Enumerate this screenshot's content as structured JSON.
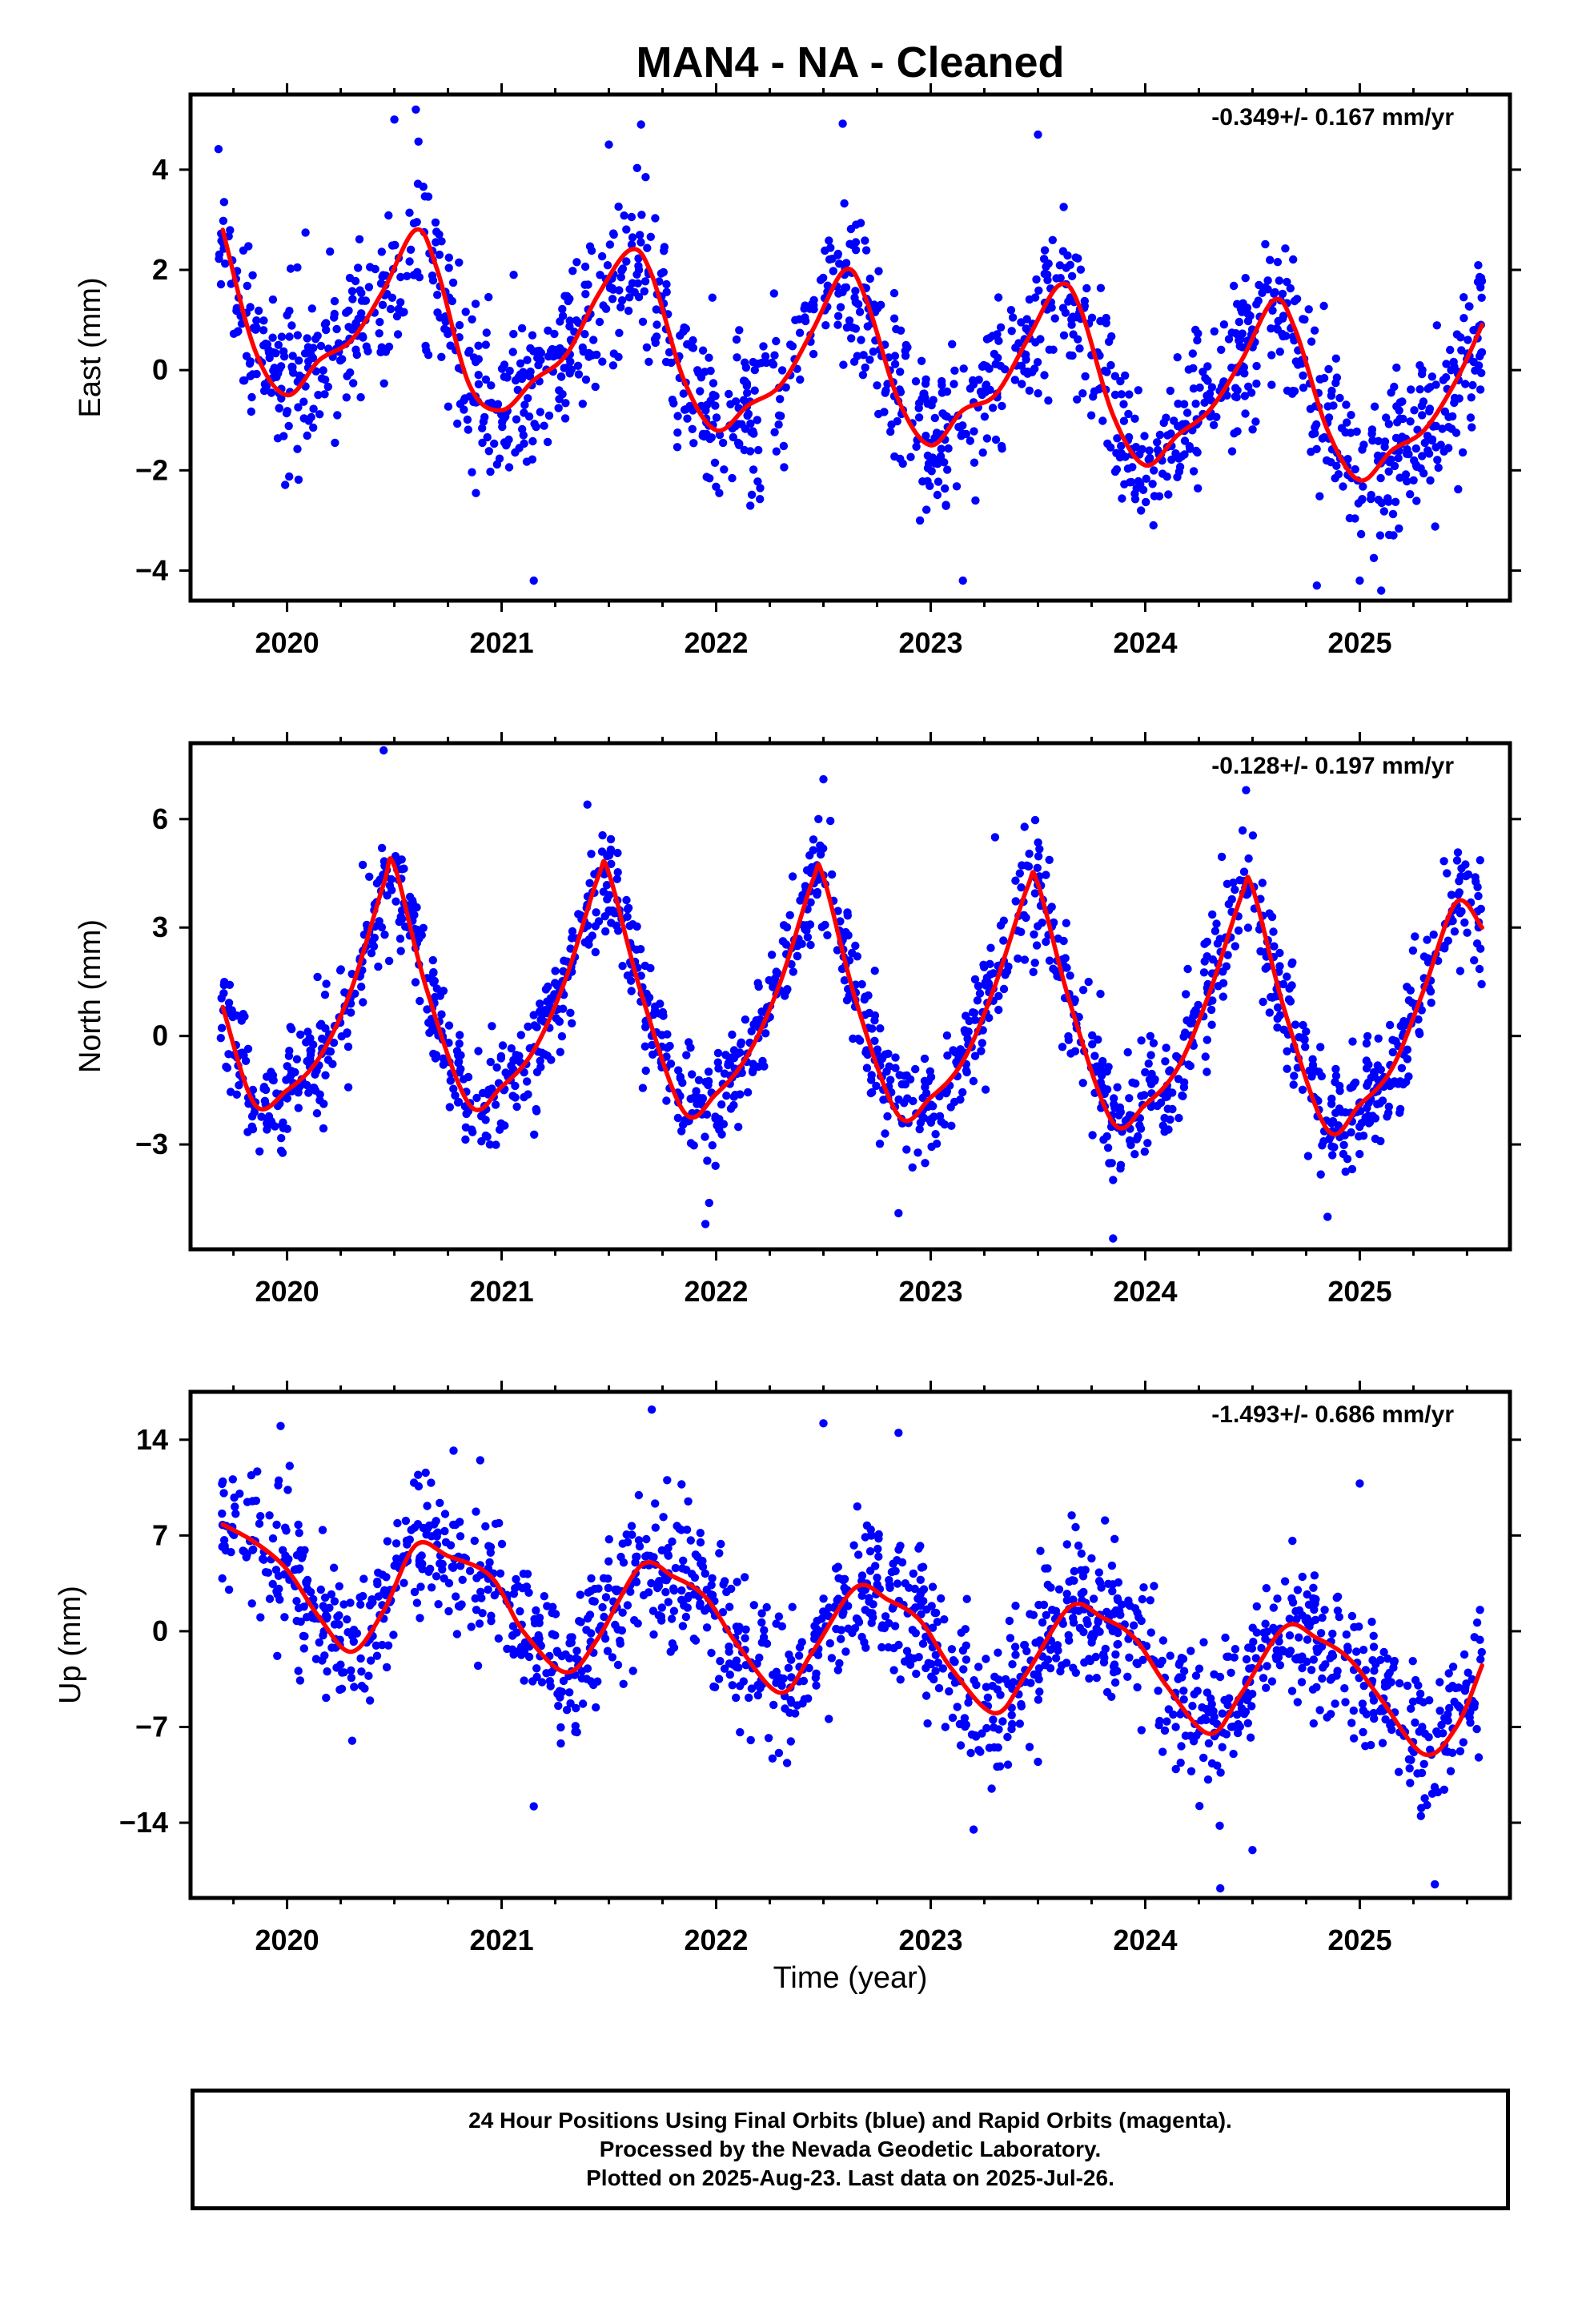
{
  "figure": {
    "title": "MAN4  - NA - Cleaned"
  },
  "colors": {
    "points": "#0000ff",
    "model": "#ff0000",
    "frame": "#000000",
    "background": "#ffffff"
  },
  "chart_data": [
    {
      "type": "scatter",
      "ylabel": "East (mm)",
      "xlabel": "",
      "rate_label": "-0.349+/- 0.167 mm/yr",
      "xlim": [
        2019.55,
        2025.7
      ],
      "ylim": [
        -4.6,
        5.5
      ],
      "xticks": [
        2020,
        2021,
        2022,
        2023,
        2024,
        2025
      ],
      "yticks": [
        -4,
        -2,
        0,
        2,
        4
      ],
      "model": {
        "x": [
          2019.7,
          2019.85,
          2020.0,
          2020.15,
          2020.3,
          2020.45,
          2020.6,
          2020.7,
          2020.85,
          2021.0,
          2021.15,
          2021.3,
          2021.45,
          2021.6,
          2021.7,
          2021.85,
          2022.0,
          2022.15,
          2022.3,
          2022.45,
          2022.6,
          2022.7,
          2022.85,
          2023.0,
          2023.15,
          2023.3,
          2023.45,
          2023.6,
          2023.7,
          2023.85,
          2024.0,
          2024.15,
          2024.3,
          2024.45,
          2024.6,
          2024.7,
          2024.85,
          2025.0,
          2025.15,
          2025.3,
          2025.45,
          2025.57
        ],
        "y": [
          2.8,
          0.4,
          -0.5,
          0.2,
          0.6,
          1.6,
          2.8,
          2.0,
          -0.3,
          -0.8,
          -0.2,
          0.3,
          1.5,
          2.4,
          1.9,
          -0.2,
          -1.2,
          -0.7,
          -0.3,
          0.8,
          2.0,
          1.4,
          -0.6,
          -1.5,
          -0.8,
          -0.5,
          0.6,
          1.7,
          1.2,
          -0.9,
          -1.9,
          -1.3,
          -0.8,
          0.2,
          1.4,
          0.8,
          -1.2,
          -2.2,
          -1.6,
          -1.2,
          -0.2,
          0.9
        ]
      },
      "scatter_seed": 11,
      "scatter_noise": 0.8,
      "scatter_count": 1500,
      "outliers": {
        "x": [
          2020.5,
          2020.6,
          2021.15,
          2021.5,
          2021.65,
          2022.95,
          2023.15,
          2023.5,
          2024.8,
          2025.0,
          2025.1
        ],
        "y": [
          5.0,
          5.2,
          -4.2,
          4.5,
          4.9,
          -3.0,
          -4.2,
          4.7,
          -4.3,
          -4.2,
          -4.4
        ]
      }
    },
    {
      "type": "scatter",
      "ylabel": "North (mm)",
      "xlabel": "",
      "rate_label": "-0.128+/- 0.197 mm/yr",
      "xlim": [
        2019.55,
        2025.7
      ],
      "ylim": [
        -5.9,
        8.1
      ],
      "xticks": [
        2020,
        2021,
        2022,
        2023,
        2024,
        2025
      ],
      "yticks": [
        -3,
        0,
        3,
        6
      ],
      "model": {
        "x": [
          2019.7,
          2019.85,
          2020.0,
          2020.15,
          2020.3,
          2020.45,
          2020.5,
          2020.65,
          2020.85,
          2021.0,
          2021.15,
          2021.3,
          2021.45,
          2021.5,
          2021.65,
          2021.85,
          2022.0,
          2022.15,
          2022.3,
          2022.45,
          2022.5,
          2022.65,
          2022.85,
          2023.0,
          2023.15,
          2023.3,
          2023.45,
          2023.5,
          2023.65,
          2023.85,
          2024.0,
          2024.15,
          2024.3,
          2024.45,
          2024.5,
          2024.65,
          2024.85,
          2025.0,
          2025.15,
          2025.3,
          2025.45,
          2025.57
        ],
        "y": [
          0.8,
          -1.9,
          -1.5,
          -0.6,
          1.3,
          4.2,
          4.7,
          1.3,
          -1.9,
          -1.4,
          -0.4,
          1.6,
          4.4,
          4.5,
          1.2,
          -2.1,
          -1.6,
          -0.5,
          1.5,
          4.3,
          4.4,
          1.0,
          -2.2,
          -1.7,
          -0.7,
          1.4,
          4.1,
          4.2,
          0.9,
          -2.4,
          -1.9,
          -0.9,
          1.2,
          3.9,
          4.1,
          0.7,
          -2.6,
          -1.9,
          -0.9,
          1.3,
          3.7,
          3.0
        ]
      },
      "scatter_seed": 23,
      "scatter_noise": 0.8,
      "scatter_count": 1500,
      "outliers": {
        "x": [
          2020.45,
          2021.4,
          2021.95,
          2022.5,
          2022.85,
          2023.3,
          2023.85,
          2024.47,
          2024.85
        ],
        "y": [
          7.9,
          6.4,
          -5.2,
          7.1,
          -4.9,
          5.5,
          -5.6,
          6.8,
          -5.0
        ]
      }
    },
    {
      "type": "scatter",
      "ylabel": "Up (mm)",
      "xlabel": "Time (year)",
      "rate_label": "-1.493+/- 0.686 mm/yr",
      "xlim": [
        2019.55,
        2025.7
      ],
      "ylim": [
        -19.5,
        17.5
      ],
      "xticks": [
        2020,
        2021,
        2022,
        2023,
        2024,
        2025
      ],
      "yticks": [
        -14,
        -7,
        0,
        7,
        14
      ],
      "model": {
        "x": [
          2019.7,
          2019.85,
          2020.0,
          2020.15,
          2020.3,
          2020.45,
          2020.6,
          2020.75,
          2020.95,
          2021.1,
          2021.3,
          2021.45,
          2021.65,
          2021.8,
          2021.95,
          2022.1,
          2022.3,
          2022.45,
          2022.65,
          2022.8,
          2022.95,
          2023.1,
          2023.3,
          2023.45,
          2023.65,
          2023.8,
          2023.95,
          2024.1,
          2024.3,
          2024.45,
          2024.65,
          2024.8,
          2024.95,
          2025.1,
          2025.3,
          2025.45,
          2025.57
        ],
        "y": [
          7.8,
          6.5,
          4.5,
          1.0,
          -1.5,
          1.5,
          6.3,
          5.5,
          4.0,
          0.0,
          -3.0,
          -0.5,
          4.8,
          4.0,
          2.5,
          -1.0,
          -4.5,
          -1.5,
          3.2,
          2.3,
          0.8,
          -2.8,
          -6.0,
          -3.0,
          1.8,
          1.0,
          -0.5,
          -4.0,
          -7.5,
          -4.5,
          0.3,
          -0.5,
          -2.0,
          -5.0,
          -9.0,
          -7.0,
          -2.5
        ]
      },
      "scatter_seed": 37,
      "scatter_noise": 2.6,
      "scatter_count": 1500,
      "outliers": {
        "x": [
          2019.97,
          2020.9,
          2021.15,
          2021.7,
          2022.5,
          2022.85,
          2023.2,
          2024.35,
          2024.5,
          2025.0,
          2025.35
        ],
        "y": [
          15.0,
          12.5,
          -12.8,
          16.2,
          15.2,
          14.5,
          -14.5,
          -18.8,
          -16.0,
          10.8,
          -18.5
        ]
      }
    }
  ],
  "footer": {
    "line1": "24 Hour Positions Using Final Orbits (blue) and Rapid Orbits (magenta).",
    "line2": "Processed by the Nevada Geodetic Laboratory.",
    "line3": "Plotted on 2025-Aug-23. Last data on 2025-Jul-26."
  }
}
